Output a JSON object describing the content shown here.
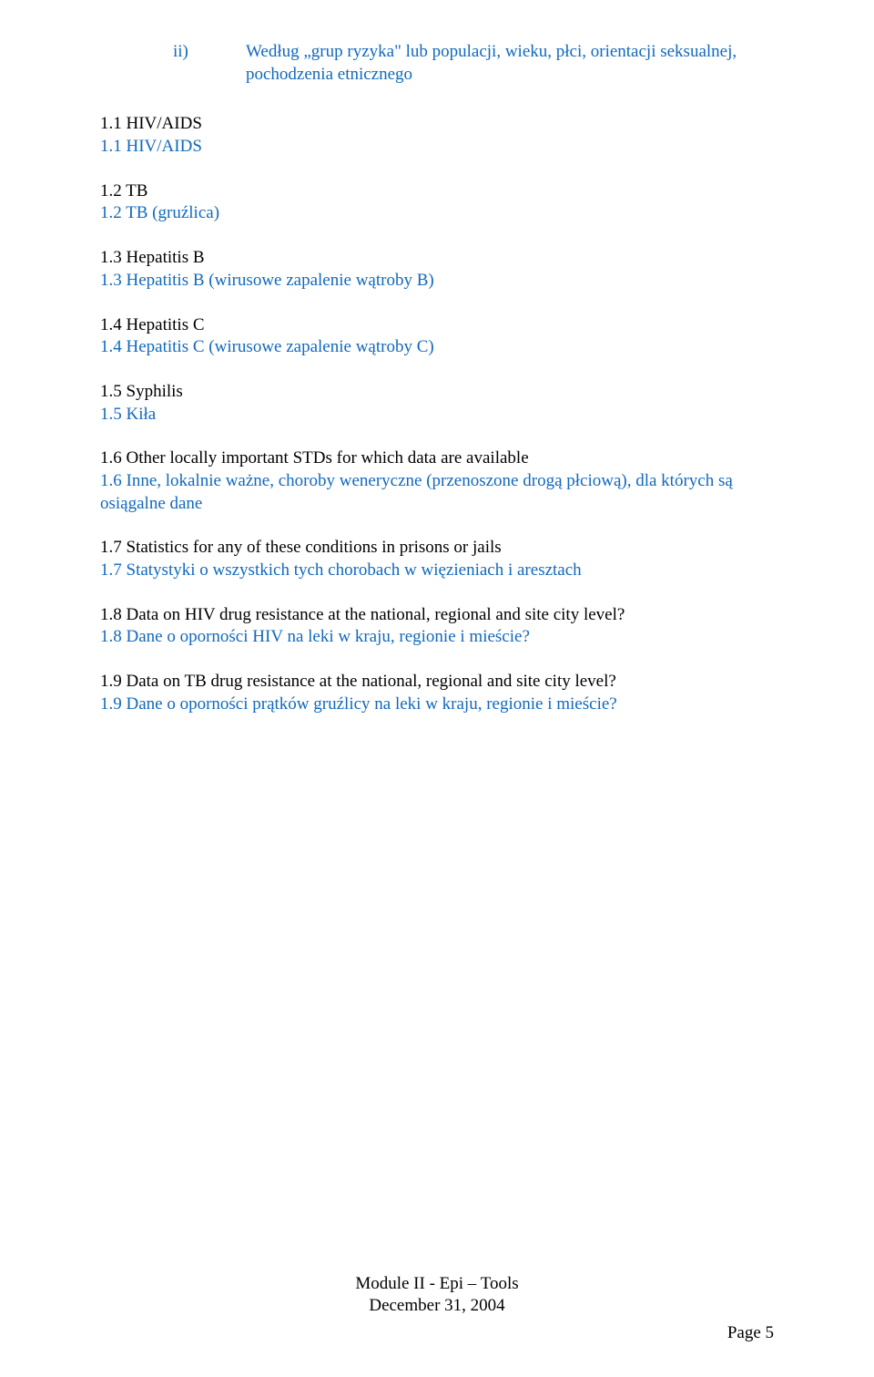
{
  "section_ii": {
    "label": "ii)",
    "text": "Według „grup ryzyka\" lub populacji, wieku, płci, orientacji seksualnej, pochodzenia etnicznego"
  },
  "items": [
    {
      "en": "1.1 HIV/AIDS",
      "pl": "1.1 HIV/AIDS"
    },
    {
      "en": "1.2 TB",
      "pl": "1.2 TB (gruźlica)"
    },
    {
      "en": "1.3 Hepatitis B",
      "pl": "1.3 Hepatitis B (wirusowe zapalenie wątroby B)"
    },
    {
      "en": "1.4 Hepatitis C",
      "pl": "1.4 Hepatitis C (wirusowe zapalenie wątroby C)"
    },
    {
      "en": "1.5 Syphilis",
      "pl": "1.5 Kiła"
    },
    {
      "en": "1.6 Other locally important STDs for which data are available",
      "pl": "1.6 Inne, lokalnie ważne, choroby weneryczne (przenoszone drogą płciową), dla których są osiągalne dane"
    },
    {
      "en": "1.7 Statistics for any of these conditions in prisons or jails",
      "pl": "1.7 Statystyki o wszystkich tych chorobach w więzieniach i aresztach"
    },
    {
      "en": "1.8 Data on HIV drug resistance at the national, regional and site city level?",
      "pl": "1.8 Dane o oporności HIV na leki w kraju, regionie i mieście?"
    },
    {
      "en": "1.9 Data on TB drug resistance at the national, regional and site city level?",
      "pl": "1.9 Dane o oporności prątków gruźlicy na leki w kraju, regionie i mieście?"
    }
  ],
  "footer": {
    "line1": "Module II - Epi – Tools",
    "line2": "December 31, 2004"
  },
  "page_label": "Page 5",
  "colors": {
    "blue": "#1169be",
    "black": "#000000",
    "background": "#ffffff"
  }
}
